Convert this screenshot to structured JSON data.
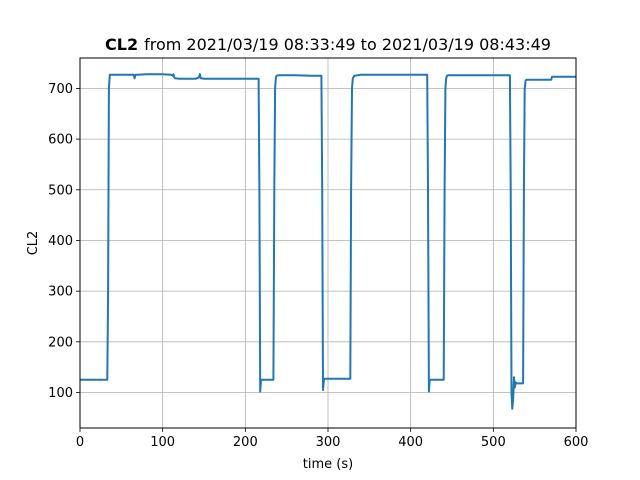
{
  "chart_data": {
    "type": "line",
    "title_bold": "CL2",
    "title_rest": "from 2021/03/19 08:33:49 to 2021/03/19 08:43:49",
    "xlabel": "time (s)",
    "ylabel": "CL2",
    "xlim": [
      0,
      600
    ],
    "ylim": [
      30,
      760
    ],
    "xticks": [
      0,
      100,
      200,
      300,
      400,
      500,
      600
    ],
    "yticks": [
      100,
      200,
      300,
      400,
      500,
      600,
      700
    ],
    "grid": true,
    "line_color": "#1f77b4",
    "series": [
      {
        "x": [
          0,
          33,
          34,
          35,
          36,
          40,
          50,
          65,
          66,
          67,
          68,
          70,
          80,
          100,
          110,
          112,
          113,
          114,
          115,
          120,
          140,
          144,
          145,
          146,
          150,
          180,
          200,
          216,
          217,
          218,
          219,
          220,
          225,
          234,
          235,
          236,
          237,
          238,
          240,
          260,
          280,
          292,
          293,
          294,
          295,
          296,
          300,
          320,
          327,
          328,
          329,
          330,
          332,
          340,
          360,
          380,
          400,
          420,
          421,
          422,
          423,
          424,
          430,
          440,
          441,
          442,
          443,
          444,
          446,
          460,
          480,
          500,
          520,
          521,
          522,
          523,
          524,
          525,
          526,
          527,
          528,
          530,
          536,
          537,
          538,
          539,
          540,
          560,
          570,
          571,
          572,
          580,
          600
        ],
        "y": [
          125,
          125,
          300,
          700,
          727,
          727,
          727,
          727,
          720,
          727,
          727,
          727,
          728,
          728,
          727,
          725,
          728,
          722,
          720,
          719,
          719,
          722,
          728,
          720,
          719,
          719,
          719,
          719,
          500,
          102,
          125,
          125,
          125,
          125,
          500,
          700,
          722,
          725,
          726,
          726,
          725,
          725,
          500,
          105,
          125,
          127,
          127,
          127,
          127,
          500,
          700,
          720,
          725,
          727,
          727,
          727,
          727,
          727,
          500,
          102,
          125,
          125,
          125,
          125,
          500,
          700,
          720,
          725,
          726,
          726,
          726,
          726,
          726,
          500,
          100,
          68,
          90,
          130,
          110,
          120,
          118,
          118,
          118,
          500,
          700,
          715,
          717,
          717,
          717,
          723,
          723,
          723,
          723
        ]
      }
    ]
  }
}
